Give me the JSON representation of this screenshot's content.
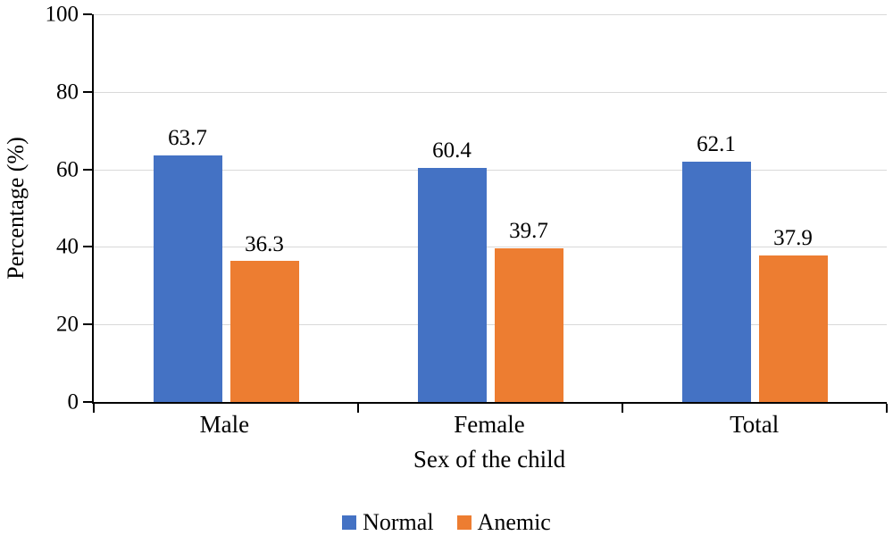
{
  "chart_data": {
    "type": "bar",
    "title": "",
    "xlabel": "Sex of the child",
    "ylabel": "Percentage (%)",
    "categories": [
      "Male",
      "Female",
      "Total"
    ],
    "series": [
      {
        "name": "Normal",
        "color": "#4472C4",
        "values": [
          63.7,
          60.4,
          62.1
        ]
      },
      {
        "name": "Anemic",
        "color": "#ED7D31",
        "values": [
          36.3,
          39.7,
          37.9
        ]
      }
    ],
    "ylim": [
      0,
      100
    ],
    "yticks": [
      0,
      20,
      40,
      60,
      80,
      100
    ],
    "grid": "horizontal",
    "legend_position": "bottom",
    "value_labels": [
      "63.7",
      "36.3",
      "60.4",
      "39.7",
      "62.1",
      "37.9"
    ]
  },
  "colors": {
    "axis": "#000000",
    "gridline": "#d9d9d9",
    "background": "#ffffff",
    "text": "#000000"
  }
}
